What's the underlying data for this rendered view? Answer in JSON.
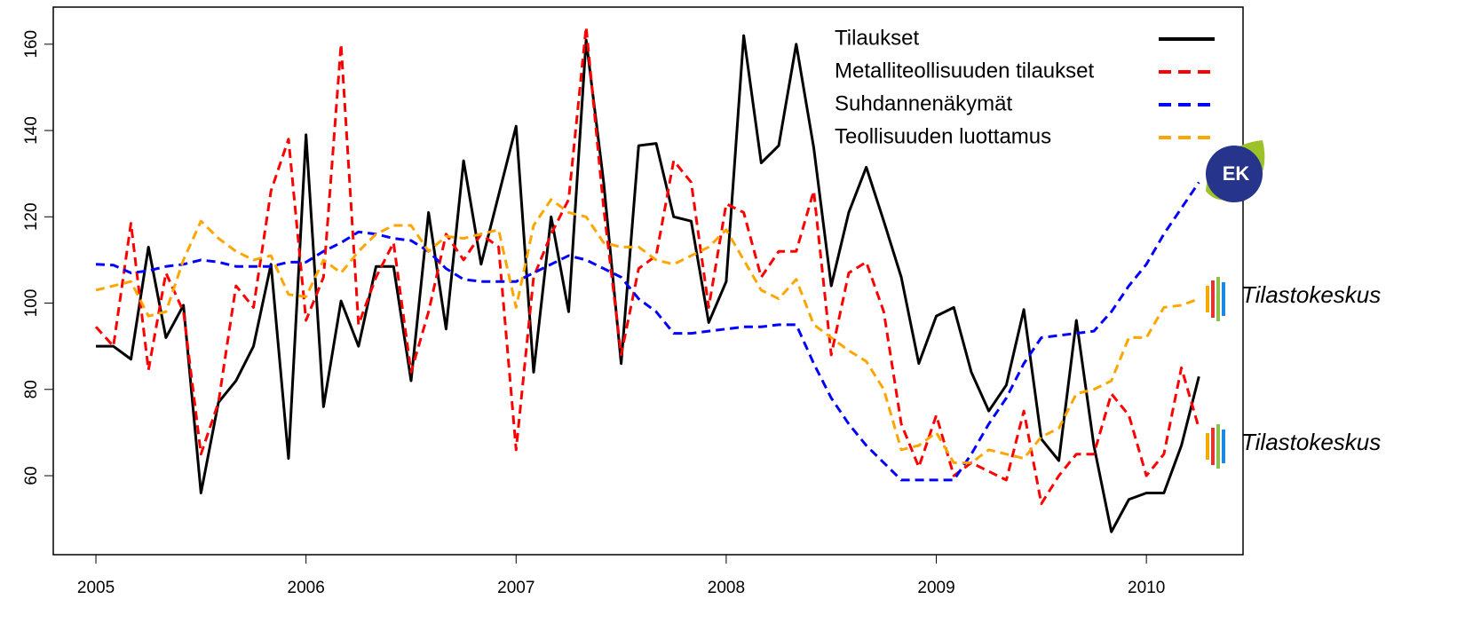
{
  "chart_data": {
    "type": "line",
    "x": [
      2005,
      2005.0833,
      2005.1667,
      2005.25,
      2005.3333,
      2005.4167,
      2005.5,
      2005.5833,
      2005.6667,
      2005.75,
      2005.8333,
      2005.9167,
      2006,
      2006.0833,
      2006.1667,
      2006.25,
      2006.3333,
      2006.4167,
      2006.5,
      2006.5833,
      2006.6667,
      2006.75,
      2006.8333,
      2006.9167,
      2007,
      2007.0833,
      2007.1667,
      2007.25,
      2007.3333,
      2007.4167,
      2007.5,
      2007.5833,
      2007.6667,
      2007.75,
      2007.8333,
      2007.9167,
      2008,
      2008.0833,
      2008.1667,
      2008.25,
      2008.3333,
      2008.4167,
      2008.5,
      2008.5833,
      2008.6667,
      2008.75,
      2008.8333,
      2008.9167,
      2009,
      2009.0833,
      2009.1667,
      2009.25,
      2009.3333,
      2009.4167,
      2009.5,
      2009.5833,
      2009.6667,
      2009.75,
      2009.8333,
      2009.9167,
      2010,
      2010.0833,
      2010.1667,
      2010.25
    ],
    "series": [
      {
        "name": "Tilaukset",
        "color": "#000000",
        "linestyle": "solid",
        "values": [
          90,
          90,
          87,
          113,
          92,
          99.5,
          56,
          77,
          82,
          90,
          109,
          64,
          139,
          76,
          100.5,
          90,
          108.5,
          108.5,
          82,
          121,
          94,
          133,
          109,
          125,
          141,
          84,
          120,
          98,
          161,
          128,
          86,
          136.5,
          137,
          120,
          119,
          95.5,
          105,
          162,
          132.5,
          136.5,
          160,
          136,
          104,
          121,
          131.5,
          119,
          106,
          86,
          97,
          99,
          84,
          75,
          81,
          98.5,
          68.5,
          63.5,
          96,
          67,
          47,
          54.5,
          56,
          56,
          67,
          83
        ]
      },
      {
        "name": "Metalliteollisuuden tilaukset",
        "color": "#ff0000",
        "linestyle": "dashed",
        "values": [
          94.5,
          90,
          118.5,
          84.5,
          107,
          98,
          65,
          77,
          104,
          99,
          126,
          138,
          96,
          106,
          160,
          95,
          106,
          114,
          84,
          98,
          116,
          110,
          116,
          113,
          66,
          106,
          116,
          124,
          164,
          122,
          88,
          108,
          111,
          133,
          128,
          99,
          123,
          121,
          106,
          112,
          112,
          126,
          88,
          107,
          109.5,
          98,
          72,
          62,
          74,
          60,
          63,
          61,
          59,
          75,
          53.5,
          60,
          65,
          65,
          79,
          74,
          60,
          65,
          85,
          71
        ]
      },
      {
        "name": "Suhdannenäkymät",
        "color": "#0000ff",
        "linestyle": "dashed",
        "values": [
          109,
          108.8,
          107,
          107.5,
          108.5,
          109,
          110,
          109.5,
          108.5,
          108.5,
          108.5,
          109.5,
          109.5,
          112,
          114,
          116.5,
          116,
          115,
          114.5,
          112,
          108,
          105.5,
          105,
          105,
          105,
          107,
          109,
          111,
          110,
          108,
          106,
          101,
          98,
          93,
          93,
          93.5,
          94,
          94.5,
          94.5,
          95,
          95,
          86,
          78,
          72,
          67,
          63,
          59,
          59,
          59,
          59,
          65,
          72,
          78,
          86,
          92,
          92.5,
          93,
          93.5,
          98,
          104,
          109,
          116,
          122,
          128
        ]
      },
      {
        "name": "Teollisuuden luottamus",
        "color": "#ffa500",
        "linestyle": "dashed",
        "values": [
          103,
          104,
          105,
          97,
          98,
          110,
          119,
          115,
          112,
          110,
          111,
          102,
          101.5,
          110,
          107,
          112,
          116,
          118,
          118,
          112,
          115.5,
          115,
          116,
          117,
          99,
          118,
          124,
          121,
          120,
          114,
          113,
          113,
          110,
          109,
          111,
          113,
          117,
          110,
          103,
          101,
          105.5,
          95,
          92,
          89,
          86.5,
          80,
          66,
          67,
          70,
          63,
          63,
          66,
          65,
          64,
          69,
          71,
          79,
          80,
          82,
          92,
          92,
          99,
          99.5,
          101
        ]
      }
    ],
    "xlim": [
      2004.797,
      2010.46
    ],
    "xticks": [
      2005,
      2006,
      2007,
      2008,
      2009,
      2010
    ],
    "ylim": [
      41.7,
      168.6
    ],
    "yticks": [
      60,
      80,
      100,
      120,
      140,
      160
    ],
    "legend": "top-right",
    "annotations": [
      "EK",
      "Tilastokeskus",
      "Tilastokeskus"
    ]
  }
}
